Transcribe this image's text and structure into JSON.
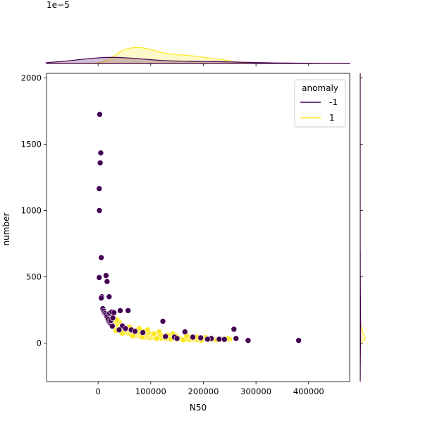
{
  "chart_data": {
    "type": "scatter",
    "xlabel": "N50",
    "ylabel": "number",
    "xlim": [
      -98000,
      478000
    ],
    "ylim": [
      -290,
      2035
    ],
    "x_ticks": [
      0,
      100000,
      200000,
      300000,
      400000
    ],
    "x_tick_labels": [
      "0",
      "100000",
      "200000",
      "300000",
      "400000"
    ],
    "y_ticks": [
      0,
      500,
      1000,
      1500,
      2000
    ],
    "y_tick_labels": [
      "0",
      "500",
      "1000",
      "1500",
      "2000"
    ],
    "grid": false,
    "top_marginal_exponent_label": "1e−5",
    "top_marginal_ymax": 1.55,
    "right_marginal_xmax": 0.05,
    "legend": {
      "title": "anomaly",
      "placement": "top-right",
      "entries": [
        {
          "label": "-1",
          "color": "#440154"
        },
        {
          "label": "1",
          "color": "#fde725"
        }
      ]
    },
    "series": [
      {
        "name": "-1",
        "color": "#440154",
        "points": [
          [
            3000,
            1725
          ],
          [
            5000,
            1435
          ],
          [
            4000,
            1360
          ],
          [
            2000,
            1165
          ],
          [
            2500,
            1000
          ],
          [
            6000,
            645
          ],
          [
            15000,
            510
          ],
          [
            17000,
            465
          ],
          [
            2000,
            495
          ],
          [
            21000,
            350
          ],
          [
            7000,
            350
          ],
          [
            6000,
            340
          ],
          [
            9000,
            260
          ],
          [
            11000,
            240
          ],
          [
            13000,
            225
          ],
          [
            15000,
            215
          ],
          [
            17000,
            200
          ],
          [
            19000,
            180
          ],
          [
            21000,
            160
          ],
          [
            23000,
            150
          ],
          [
            25000,
            140
          ],
          [
            27000,
            128
          ],
          [
            22000,
            225
          ],
          [
            26000,
            235
          ],
          [
            30000,
            230
          ],
          [
            24000,
            170
          ],
          [
            28000,
            190
          ],
          [
            42000,
            245
          ],
          [
            57000,
            245
          ],
          [
            46000,
            130
          ],
          [
            40000,
            100
          ],
          [
            52000,
            110
          ],
          [
            63000,
            100
          ],
          [
            70000,
            90
          ],
          [
            85000,
            80
          ],
          [
            123000,
            165
          ],
          [
            165000,
            85
          ],
          [
            128000,
            50
          ],
          [
            145000,
            45
          ],
          [
            180000,
            45
          ],
          [
            195000,
            40
          ],
          [
            215000,
            35
          ],
          [
            230000,
            30
          ],
          [
            240000,
            28
          ],
          [
            258000,
            105
          ],
          [
            262000,
            35
          ],
          [
            285000,
            20
          ],
          [
            381000,
            20
          ],
          [
            150000,
            35
          ],
          [
            208000,
            30
          ]
        ]
      },
      {
        "name": "1",
        "color": "#fde725",
        "points": [
          [
            32000,
            150
          ],
          [
            35000,
            140
          ],
          [
            38000,
            125
          ],
          [
            40000,
            160
          ],
          [
            42000,
            110
          ],
          [
            45000,
            100
          ],
          [
            48000,
            90
          ],
          [
            50000,
            95
          ],
          [
            52000,
            80
          ],
          [
            55000,
            85
          ],
          [
            58000,
            75
          ],
          [
            60000,
            90
          ],
          [
            62000,
            70
          ],
          [
            65000,
            80
          ],
          [
            68000,
            65
          ],
          [
            70000,
            75
          ],
          [
            72000,
            60
          ],
          [
            75000,
            70
          ],
          [
            78000,
            55
          ],
          [
            80000,
            65
          ],
          [
            82000,
            50
          ],
          [
            85000,
            60
          ],
          [
            88000,
            55
          ],
          [
            90000,
            45
          ],
          [
            92000,
            60
          ],
          [
            95000,
            50
          ],
          [
            98000,
            40
          ],
          [
            100000,
            55
          ],
          [
            102000,
            45
          ],
          [
            105000,
            50
          ],
          [
            108000,
            40
          ],
          [
            110000,
            48
          ],
          [
            115000,
            42
          ],
          [
            120000,
            38
          ],
          [
            125000,
            45
          ],
          [
            130000,
            35
          ],
          [
            135000,
            40
          ],
          [
            140000,
            32
          ],
          [
            145000,
            38
          ],
          [
            150000,
            30
          ],
          [
            155000,
            35
          ],
          [
            160000,
            28
          ],
          [
            165000,
            32
          ],
          [
            170000,
            30
          ],
          [
            175000,
            28
          ],
          [
            180000,
            32
          ],
          [
            185000,
            30
          ],
          [
            190000,
            26
          ],
          [
            200000,
            30
          ],
          [
            210000,
            28
          ],
          [
            220000,
            26
          ],
          [
            230000,
            32
          ],
          [
            240000,
            28
          ],
          [
            250000,
            30
          ],
          [
            36000,
            175
          ],
          [
            44000,
            130
          ],
          [
            56000,
            115
          ],
          [
            64000,
            100
          ],
          [
            74000,
            95
          ],
          [
            86000,
            90
          ],
          [
            96000,
            80
          ],
          [
            106000,
            70
          ],
          [
            118000,
            65
          ],
          [
            132000,
            60
          ],
          [
            148000,
            55
          ],
          [
            34000,
            95
          ],
          [
            46000,
            75
          ],
          [
            66000,
            55
          ],
          [
            84000,
            45
          ],
          [
            112000,
            35
          ],
          [
            138000,
            30
          ],
          [
            162000,
            25
          ],
          [
            196000,
            22
          ],
          [
            226000,
            24
          ],
          [
            60000,
            120
          ],
          [
            78000,
            110
          ],
          [
            94000,
            100
          ],
          [
            116000,
            85
          ],
          [
            142000,
            70
          ],
          [
            168000,
            55
          ],
          [
            178000,
            48
          ],
          [
            188000,
            44
          ],
          [
            204000,
            42
          ],
          [
            216000,
            38
          ],
          [
            246000,
            34
          ]
        ]
      }
    ]
  }
}
